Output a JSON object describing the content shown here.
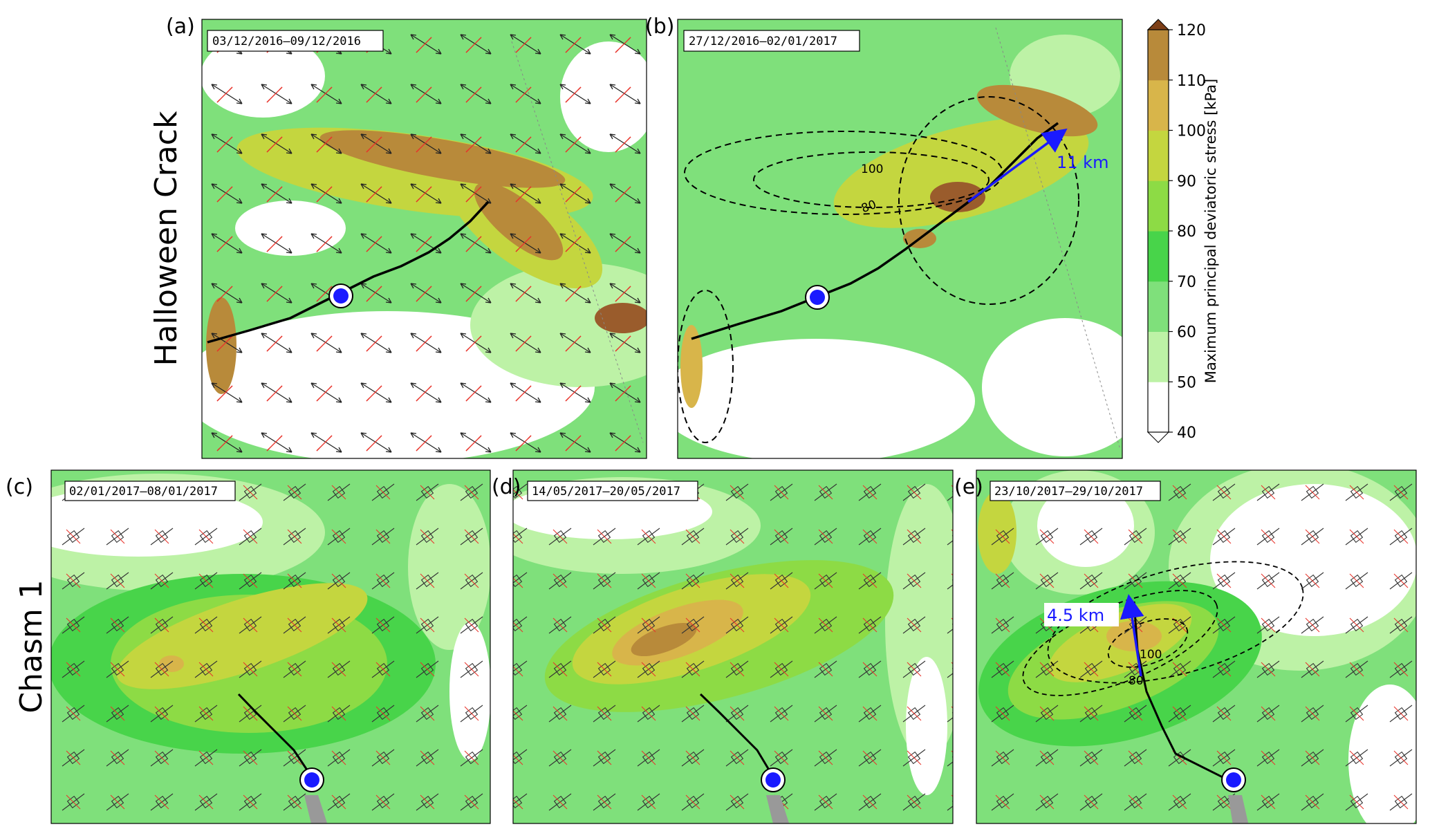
{
  "row_labels": {
    "top": "Halloween Crack",
    "bottom": "Chasm 1"
  },
  "panels": [
    {
      "key": "a",
      "letter": "(a)",
      "dates": "03/12/2016–09/12/2016"
    },
    {
      "key": "b",
      "letter": "(b)",
      "dates": "27/12/2016–02/01/2017",
      "contour_labels": [
        "100",
        "80"
      ],
      "annotation": "11 km"
    },
    {
      "key": "c",
      "letter": "(c)",
      "dates": "02/01/2017–08/01/2017"
    },
    {
      "key": "d",
      "letter": "(d)",
      "dates": "14/05/2017–20/05/2017"
    },
    {
      "key": "e",
      "letter": "(e)",
      "dates": "23/10/2017–29/10/2017",
      "contour_labels": [
        "100",
        "80"
      ],
      "annotation": "4.5 km"
    }
  ],
  "colorbar": {
    "title": "Maximum principal deviatoric stress [kPa]",
    "ticks": [
      "40",
      "50",
      "60",
      "70",
      "80",
      "90",
      "100",
      "110",
      "120"
    ],
    "colors": [
      "#ffffff",
      "#bdf2a6",
      "#7fe07b",
      "#48d44a",
      "#8ddb45",
      "#c4d63f",
      "#d8b54a",
      "#b88a3a",
      "#9a5c2c",
      "#7d3f17"
    ]
  },
  "colors": {
    "annotation": "#1a1aff",
    "marker": "#1a1aff",
    "crack": "#000000",
    "tensile_arrow": "#e8332b",
    "compressive_arrow": "#222222"
  }
}
